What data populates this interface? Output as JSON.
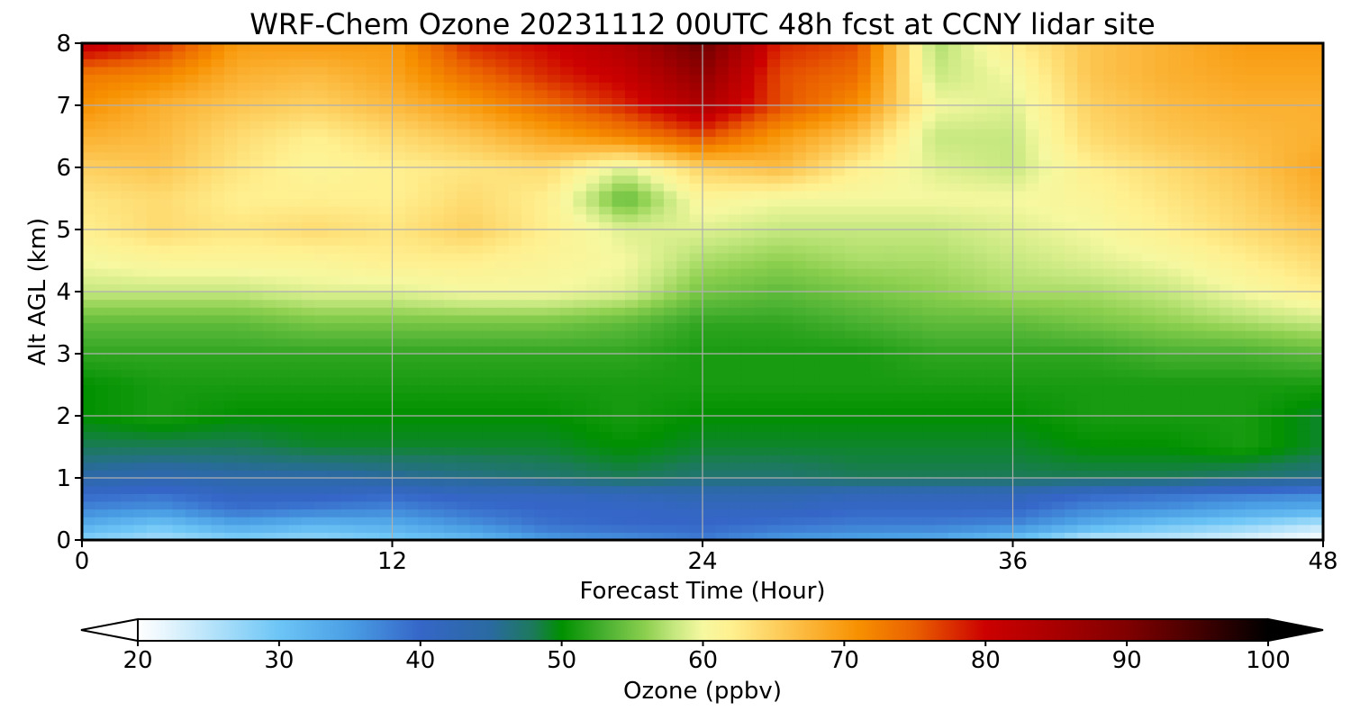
{
  "chart_data": {
    "type": "heatmap",
    "title": "WRF-Chem Ozone  20231112 00UTC 48h fcst at CCNY lidar site",
    "xlabel": "Forecast Time (Hour)",
    "ylabel": "Alt AGL (km)",
    "xlim": [
      0,
      48
    ],
    "ylim": [
      0,
      8
    ],
    "xticks": [
      0,
      12,
      24,
      36,
      48
    ],
    "yticks": [
      0,
      1,
      2,
      3,
      4,
      5,
      6,
      7,
      8
    ],
    "grid": true,
    "x": [
      0,
      3,
      6,
      9,
      12,
      15,
      18,
      21,
      24,
      27,
      30,
      33,
      36,
      39,
      42,
      45,
      48
    ],
    "y": [
      0,
      0.25,
      0.5,
      0.75,
      1,
      1.5,
      2,
      2.5,
      3,
      3.5,
      4,
      4.5,
      5,
      5.5,
      6,
      6.5,
      7,
      7.5,
      8
    ],
    "z": [
      [
        28,
        26,
        28,
        27,
        29,
        31,
        35,
        36,
        38,
        35,
        34,
        33,
        30,
        24,
        24,
        22,
        20
      ],
      [
        33,
        30,
        34,
        32,
        33,
        36,
        39,
        40,
        40,
        39,
        38,
        38,
        37,
        33,
        30,
        28,
        25
      ],
      [
        37,
        36,
        39,
        38,
        37,
        39,
        40,
        40,
        41,
        41,
        40,
        40,
        40,
        37,
        36,
        34,
        33
      ],
      [
        40,
        39,
        41,
        41,
        40,
        41,
        41,
        42,
        43,
        43,
        42,
        42,
        42,
        40,
        39,
        38,
        37
      ],
      [
        44,
        43,
        44,
        44,
        45,
        46,
        47,
        48,
        47,
        47,
        48,
        48,
        48,
        48,
        48,
        47,
        46
      ],
      [
        48,
        48,
        48,
        49,
        49,
        49,
        49,
        50,
        49,
        49,
        49,
        49,
        49,
        50,
        50,
        51,
        49
      ],
      [
        50,
        51,
        50,
        50,
        50,
        50,
        50,
        51,
        50,
        50,
        50,
        50,
        50,
        51,
        51,
        51,
        49
      ],
      [
        50,
        51,
        51,
        51,
        51,
        51,
        51,
        51,
        51,
        51,
        51,
        51,
        51,
        51,
        51,
        51,
        51
      ],
      [
        52,
        52,
        52,
        52,
        52,
        52,
        52,
        52,
        51,
        51,
        51,
        52,
        52,
        52,
        53,
        53,
        54
      ],
      [
        54,
        54,
        54,
        55,
        55,
        55,
        55,
        54,
        52,
        52,
        53,
        54,
        54,
        55,
        56,
        57,
        58
      ],
      [
        58,
        58,
        58,
        59,
        59,
        60,
        60,
        59,
        55,
        54,
        55,
        56,
        57,
        57,
        58,
        60,
        62
      ],
      [
        60,
        61,
        61,
        61,
        62,
        62,
        61,
        60,
        57,
        56,
        57,
        57,
        58,
        59,
        60,
        62,
        64
      ],
      [
        62,
        64,
        63,
        64,
        63,
        65,
        62,
        59,
        59,
        58,
        58,
        58,
        59,
        60,
        62,
        64,
        66
      ],
      [
        63,
        64,
        62,
        62,
        62,
        64,
        62,
        54,
        61,
        60,
        60,
        60,
        60,
        61,
        63,
        65,
        68
      ],
      [
        65,
        66,
        63,
        61,
        62,
        63,
        64,
        59,
        65,
        67,
        62,
        59,
        58,
        62,
        64,
        66,
        69
      ],
      [
        68,
        67,
        64,
        62,
        64,
        66,
        69,
        72,
        76,
        70,
        66,
        58,
        58,
        64,
        66,
        67,
        68
      ],
      [
        71,
        68,
        66,
        65,
        67,
        70,
        74,
        78,
        84,
        76,
        71,
        60,
        59,
        65,
        67,
        68,
        68
      ],
      [
        73,
        72,
        68,
        67,
        69,
        74,
        78,
        81,
        88,
        76,
        74,
        58,
        60,
        66,
        68,
        69,
        69
      ],
      [
        82,
        78,
        70,
        70,
        70,
        78,
        80,
        84,
        92,
        78,
        76,
        57,
        62,
        66,
        68,
        70,
        70
      ]
    ],
    "colorbar": {
      "label": "Ozone  (ppbv)",
      "min": 20,
      "max": 100,
      "ticks": [
        20,
        30,
        40,
        50,
        60,
        70,
        80,
        90,
        100
      ],
      "extend": "both",
      "stops": [
        {
          "v": 20,
          "c": "#ffffff"
        },
        {
          "v": 22,
          "c": "#e6f5fd"
        },
        {
          "v": 25,
          "c": "#b8e4fa"
        },
        {
          "v": 30,
          "c": "#6cc5f6"
        },
        {
          "v": 35,
          "c": "#4a9ee4"
        },
        {
          "v": 40,
          "c": "#3566c8"
        },
        {
          "v": 45,
          "c": "#2a6aa0"
        },
        {
          "v": 48,
          "c": "#1c7a5a"
        },
        {
          "v": 50,
          "c": "#009000"
        },
        {
          "v": 53,
          "c": "#48b030"
        },
        {
          "v": 56,
          "c": "#8ed050"
        },
        {
          "v": 58,
          "c": "#c6e880"
        },
        {
          "v": 60,
          "c": "#f6f8a0"
        },
        {
          "v": 62,
          "c": "#fff090"
        },
        {
          "v": 65,
          "c": "#fdd060"
        },
        {
          "v": 68,
          "c": "#fbb030"
        },
        {
          "v": 71,
          "c": "#f79000"
        },
        {
          "v": 75,
          "c": "#ea6000"
        },
        {
          "v": 80,
          "c": "#cc0000"
        },
        {
          "v": 85,
          "c": "#a80000"
        },
        {
          "v": 90,
          "c": "#800000"
        },
        {
          "v": 95,
          "c": "#440000"
        },
        {
          "v": 100,
          "c": "#000000"
        }
      ]
    }
  }
}
